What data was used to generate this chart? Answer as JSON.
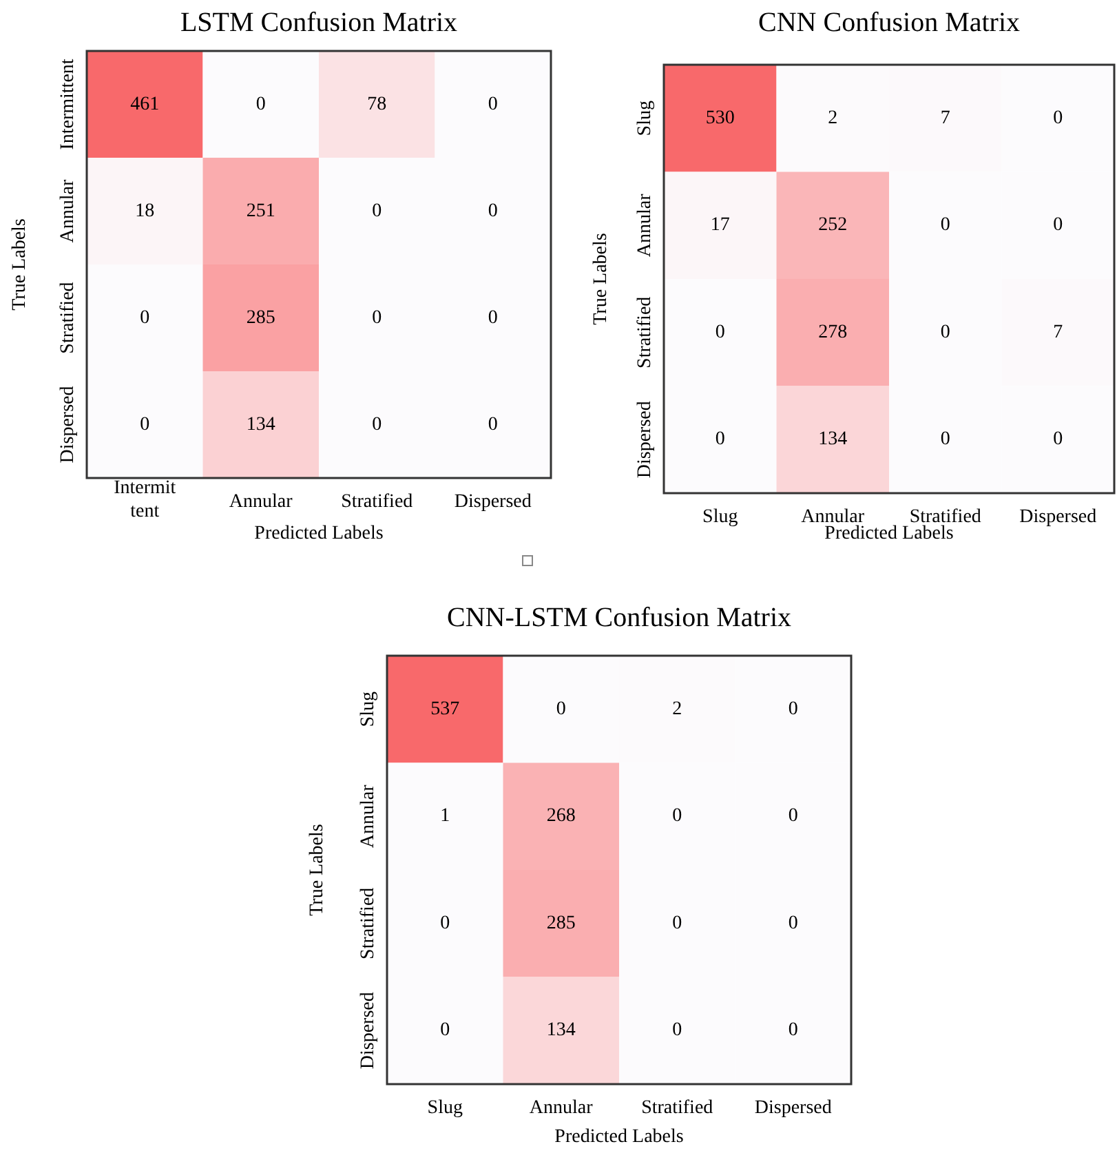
{
  "chart_data": [
    {
      "type": "heatmap",
      "title": "LSTM Confusion Matrix",
      "xlabel": "Predicted Labels",
      "ylabel": "True Labels",
      "categories": [
        "Intermittent",
        "Annular",
        "Stratified",
        "Dispersed"
      ],
      "y_categories": [
        "Intermittent",
        "Annular",
        "Stratified",
        "Dispersed"
      ],
      "cells": [
        [
          461,
          0,
          78,
          0
        ],
        [
          18,
          251,
          0,
          0
        ],
        [
          0,
          285,
          0,
          0
        ],
        [
          0,
          134,
          0,
          0
        ]
      ],
      "colors": [
        "#fcfbfd",
        "#f8696b"
      ],
      "data_labels": true
    },
    {
      "type": "heatmap",
      "title": "CNN Confusion Matrix",
      "xlabel": "Predicted Labels",
      "ylabel": "True Labels",
      "categories": [
        "Slug",
        "Annular",
        "Stratified",
        "Dispersed"
      ],
      "y_categories": [
        "Slug",
        "Annular",
        "Stratified",
        "Dispersed"
      ],
      "cells": [
        [
          530,
          2,
          7,
          0
        ],
        [
          17,
          252,
          0,
          0
        ],
        [
          0,
          278,
          0,
          7
        ],
        [
          0,
          134,
          0,
          0
        ]
      ],
      "colors": [
        "#fcfbfd",
        "#f8696b"
      ],
      "data_labels": true
    },
    {
      "type": "heatmap",
      "title": "CNN-LSTM Confusion Matrix",
      "xlabel": "Predicted Labels",
      "ylabel": "True Labels",
      "categories": [
        "Slug",
        "Annular",
        "Stratified",
        "Dispersed"
      ],
      "y_categories": [
        "Slug",
        "Annular",
        "Stratified",
        "Dispersed"
      ],
      "cells": [
        [
          537,
          0,
          2,
          0
        ],
        [
          1,
          268,
          0,
          0
        ],
        [
          0,
          285,
          0,
          0
        ],
        [
          0,
          134,
          0,
          0
        ]
      ],
      "colors": [
        "#fcfbfd",
        "#f8696b"
      ],
      "data_labels": true
    }
  ]
}
